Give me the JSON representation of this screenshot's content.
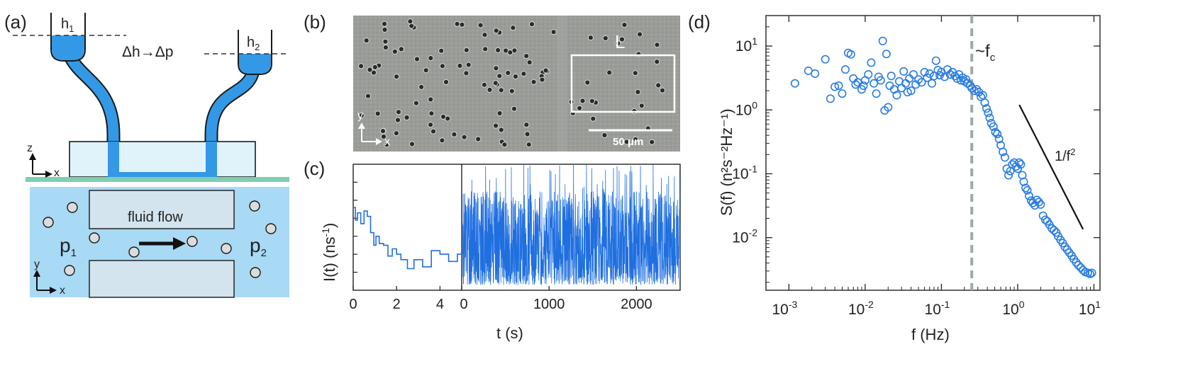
{
  "panels": {
    "a": "(a)",
    "b": "(b)",
    "c": "(c)",
    "d": "(d)"
  },
  "panel_a": {
    "h1_base": "h",
    "h1_sub": "1",
    "h2_base": "h",
    "h2_sub": "2",
    "delta": "Δh→Δp",
    "axis_z": "z",
    "axis_x_top": "x",
    "axis_y": "y",
    "axis_x_bottom": "x",
    "flow_label": "fluid flow",
    "p1_base": "p",
    "p1_sub": "1",
    "p2_base": "p",
    "p2_sub": "2",
    "colors": {
      "fluid": "#3399e6",
      "chamber": "#a8d9f5",
      "glass": "#e0f3fa",
      "substrate": "#7fcfb0",
      "channel_block": "#d3e4ee"
    }
  },
  "panel_b": {
    "roi_label": "L",
    "scale_bar": "50 μm",
    "axis_y": "y",
    "axis_x": "x"
  },
  "colors": {
    "trace": "#1f6fe0",
    "markers": "#2a7de1",
    "dashed_fc": "#9aaaa7"
  },
  "chart_data": [
    {
      "id": "c-left",
      "type": "line",
      "title": "",
      "xlabel": "t (s)",
      "ylabel_base": "I(t) (ns",
      "ylabel_sup": "-1",
      "ylabel_end": ")",
      "xlim": [
        0,
        5
      ],
      "xticks": [
        0,
        2,
        4
      ],
      "ylim": [
        0,
        7
      ],
      "x": [
        0,
        0.1,
        0.2,
        0.35,
        0.5,
        0.65,
        0.8,
        0.95,
        1.05,
        1.2,
        1.4,
        1.6,
        1.8,
        2.0,
        2.2,
        2.5,
        2.8,
        3.2,
        3.6,
        4.0,
        4.4,
        4.8,
        5.0
      ],
      "y": [
        4.6,
        3.9,
        4.3,
        3.7,
        4.4,
        4.1,
        3.2,
        2.5,
        3.0,
        2.6,
        2.5,
        1.9,
        2.3,
        2.0,
        1.7,
        1.2,
        1.7,
        1.3,
        2.2,
        2.0,
        1.6,
        2.0,
        1.9
      ]
    },
    {
      "id": "c-right",
      "type": "line",
      "title": "",
      "xlabel": "t (s)",
      "xlim": [
        0,
        2500
      ],
      "xticks": [
        0,
        1000,
        2000
      ],
      "ylim": [
        0,
        7
      ],
      "description_count": 1400
    },
    {
      "id": "d",
      "type": "scatter",
      "title": "",
      "xlabel": "f (Hz)",
      "ylabel": "S(f) (n²s⁻²Hz⁻¹)",
      "xscale": "log",
      "yscale": "log",
      "xlim": [
        0.0005,
        12
      ],
      "ylim": [
        0.0015,
        30
      ],
      "xtick_labels": [
        "10-3",
        "10-2",
        "10-1",
        "100",
        "101"
      ],
      "ytick_labels": [
        "10-2",
        "10-1",
        "100",
        "101"
      ],
      "fc_label": "~f",
      "fc_sub": "c",
      "fc_value": 0.25,
      "slope_label": "1/f",
      "slope_sup": "2",
      "points": [
        [
          0.0012,
          2.6
        ],
        [
          0.0018,
          4.1
        ],
        [
          0.0022,
          3.7
        ],
        [
          0.003,
          6.2
        ],
        [
          0.0035,
          1.5
        ],
        [
          0.004,
          2.3
        ],
        [
          0.0045,
          2.4
        ],
        [
          0.005,
          1.8
        ],
        [
          0.0055,
          4.3
        ],
        [
          0.006,
          7.8
        ],
        [
          0.0065,
          7.4
        ],
        [
          0.007,
          3.1
        ],
        [
          0.0075,
          2.5
        ],
        [
          0.008,
          2.7
        ],
        [
          0.009,
          2.1
        ],
        [
          0.0095,
          2.4
        ],
        [
          0.01,
          2.9
        ],
        [
          0.011,
          3.6
        ],
        [
          0.012,
          5.5
        ],
        [
          0.013,
          2.6
        ],
        [
          0.014,
          1.8
        ],
        [
          0.015,
          3.3
        ],
        [
          0.016,
          2.9
        ],
        [
          0.017,
          12.0
        ],
        [
          0.018,
          0.98
        ],
        [
          0.019,
          7.5
        ],
        [
          0.02,
          1.1
        ],
        [
          0.021,
          2.4
        ],
        [
          0.022,
          3.4
        ],
        [
          0.024,
          2.1
        ],
        [
          0.026,
          1.7
        ],
        [
          0.028,
          2.8
        ],
        [
          0.03,
          2.2
        ],
        [
          0.032,
          4.0
        ],
        [
          0.034,
          2.6
        ],
        [
          0.036,
          1.9
        ],
        [
          0.038,
          3.1
        ],
        [
          0.04,
          2.0
        ],
        [
          0.043,
          3.6
        ],
        [
          0.046,
          2.5
        ],
        [
          0.05,
          3.0
        ],
        [
          0.055,
          2.7
        ],
        [
          0.06,
          3.9
        ],
        [
          0.065,
          3.2
        ],
        [
          0.07,
          3.7
        ],
        [
          0.075,
          2.6
        ],
        [
          0.08,
          3.4
        ],
        [
          0.085,
          5.9
        ],
        [
          0.09,
          4.2
        ],
        [
          0.095,
          3.5
        ],
        [
          0.1,
          3.9
        ],
        [
          0.11,
          3.3
        ],
        [
          0.12,
          4.3
        ],
        [
          0.13,
          3.6
        ],
        [
          0.14,
          3.9
        ],
        [
          0.15,
          3.4
        ],
        [
          0.16,
          3.1
        ],
        [
          0.17,
          3.6
        ],
        [
          0.18,
          2.9
        ],
        [
          0.19,
          3.2
        ],
        [
          0.2,
          2.8
        ],
        [
          0.21,
          3.0
        ],
        [
          0.22,
          2.6
        ],
        [
          0.24,
          2.4
        ],
        [
          0.25,
          2.2
        ],
        [
          0.27,
          2.0
        ],
        [
          0.29,
          2.1
        ],
        [
          0.31,
          1.9
        ],
        [
          0.33,
          1.6
        ],
        [
          0.35,
          1.7
        ],
        [
          0.37,
          1.3
        ],
        [
          0.39,
          1.05
        ],
        [
          0.41,
          0.9
        ],
        [
          0.43,
          0.75
        ],
        [
          0.45,
          0.62
        ],
        [
          0.48,
          0.55
        ],
        [
          0.51,
          0.45
        ],
        [
          0.54,
          0.42
        ],
        [
          0.57,
          0.35
        ],
        [
          0.6,
          0.28
        ],
        [
          0.64,
          0.22
        ],
        [
          0.68,
          0.18
        ],
        [
          0.72,
          0.12
        ],
        [
          0.76,
          0.095
        ],
        [
          0.8,
          0.11
        ],
        [
          0.85,
          0.14
        ],
        [
          0.9,
          0.15
        ],
        [
          0.95,
          0.13
        ],
        [
          1.0,
          0.12
        ],
        [
          1.05,
          0.15
        ],
        [
          1.1,
          0.14
        ],
        [
          1.15,
          0.095
        ],
        [
          1.2,
          0.075
        ],
        [
          1.27,
          0.06
        ],
        [
          1.34,
          0.055
        ],
        [
          1.41,
          0.045
        ],
        [
          1.5,
          0.038
        ],
        [
          1.58,
          0.035
        ],
        [
          1.68,
          0.032
        ],
        [
          1.78,
          0.039
        ],
        [
          1.9,
          0.036
        ],
        [
          2.0,
          0.033
        ],
        [
          2.15,
          0.022
        ],
        [
          2.3,
          0.019
        ],
        [
          2.45,
          0.018
        ],
        [
          2.6,
          0.016
        ],
        [
          2.8,
          0.014
        ],
        [
          3.0,
          0.013
        ],
        [
          3.2,
          0.012
        ],
        [
          3.4,
          0.0105
        ],
        [
          3.65,
          0.0092
        ],
        [
          3.9,
          0.0082
        ],
        [
          4.15,
          0.0072
        ],
        [
          4.45,
          0.0065
        ],
        [
          4.75,
          0.0058
        ],
        [
          5.1,
          0.0052
        ],
        [
          5.45,
          0.0046
        ],
        [
          5.85,
          0.0041
        ],
        [
          6.25,
          0.0037
        ],
        [
          6.7,
          0.0034
        ],
        [
          7.2,
          0.0031
        ],
        [
          7.7,
          0.0029
        ],
        [
          8.3,
          0.0028
        ],
        [
          8.9,
          0.0027
        ],
        [
          9.4,
          0.0028
        ]
      ]
    }
  ]
}
